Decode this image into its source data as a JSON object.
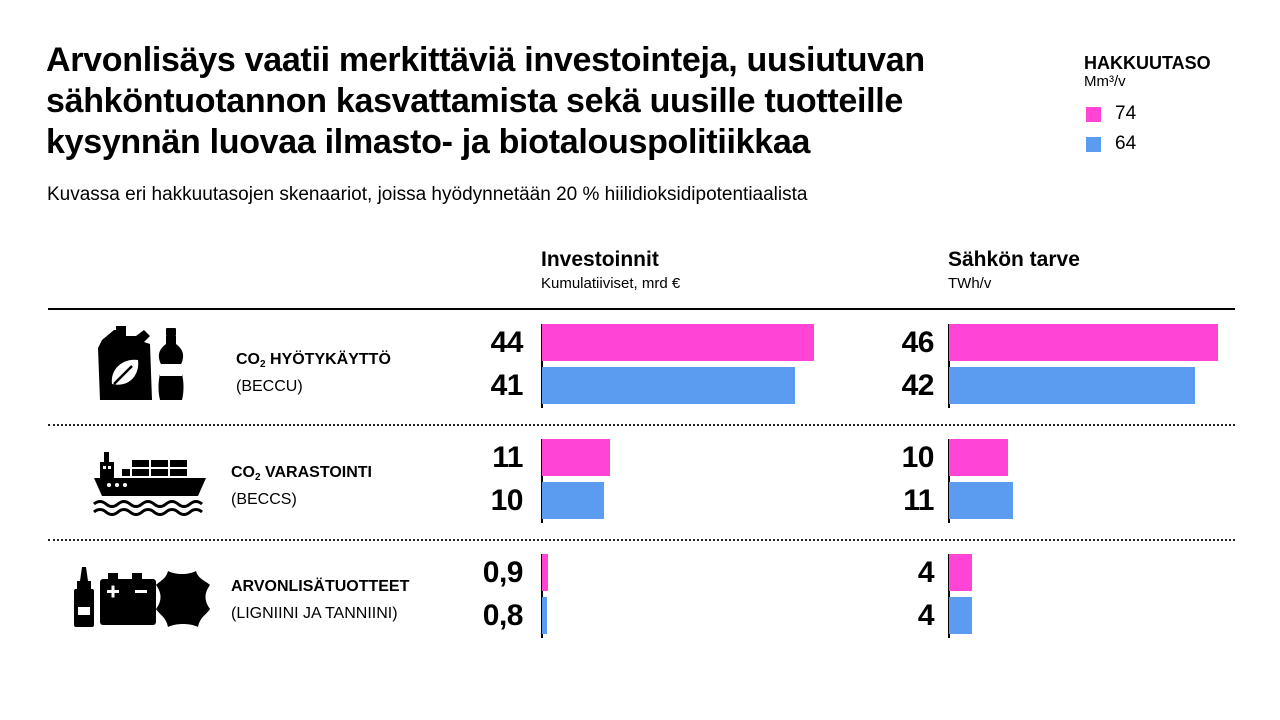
{
  "title_lines": [
    "Arvonlisäys vaatii merkittäviä investointeja, uusiutuvan",
    "sähköntuotannon kasvattamista sekä uusille tuotteille",
    "kysynnän luovaa ilmasto- ja biotalouspolitiikkaa"
  ],
  "subtitle": "Kuvassa eri hakkuutasojen skenaariot, joissa hyödynnetään 20 % hiilidioksidipotentiaalista",
  "legend": {
    "title": "HAKKUUTASO",
    "unit": "Mm³/v",
    "items": [
      {
        "label": "74",
        "color": "#ff44d6"
      },
      {
        "label": "64",
        "color": "#5b9cf0"
      }
    ]
  },
  "categories": [
    {
      "name_prefix": "CO",
      "name_sub": "2",
      "name_suffix": " HYÖTYKÄYTTÖ",
      "sub": "(BECCU)",
      "icon": "jerrycan-bottle-icon"
    },
    {
      "name_prefix": "CO",
      "name_sub": "2",
      "name_suffix": " VARASTOINTI",
      "sub": "(BECCS)",
      "icon": "cargo-ship-icon"
    },
    {
      "name_prefix": "ARVONLISÄTUOTTEET",
      "name_sub": "",
      "name_suffix": "",
      "sub": "(LIGNIINI JA TANNIINI)",
      "icon": "glue-battery-leather-icon"
    }
  ],
  "chart_data": [
    {
      "type": "bar",
      "orientation": "horizontal",
      "title": "Investoinnit",
      "unit": "Kumulatiiviset, mrd €",
      "categories": [
        "CO2 HYÖTYKÄYTTÖ (BECCU)",
        "CO2 VARASTOINTI (BECCS)",
        "ARVONLISÄTUOTTEET (LIGNIINI JA TANNIINI)"
      ],
      "series": [
        {
          "name": "74",
          "color": "#ff44d6",
          "values": [
            44,
            11,
            0.9
          ],
          "labels": [
            "44",
            "11",
            "0,9"
          ]
        },
        {
          "name": "64",
          "color": "#5b9cf0",
          "values": [
            41,
            10,
            0.8
          ],
          "labels": [
            "41",
            "10",
            "0,8"
          ]
        }
      ]
    },
    {
      "type": "bar",
      "orientation": "horizontal",
      "title": "Sähkön tarve",
      "unit": "TWh/v",
      "categories": [
        "CO2 HYÖTYKÄYTTÖ (BECCU)",
        "CO2 VARASTOINTI (BECCS)",
        "ARVONLISÄTUOTTEET (LIGNIINI JA TANNIINI)"
      ],
      "series": [
        {
          "name": "74",
          "color": "#ff44d6",
          "values": [
            46,
            10,
            4
          ],
          "labels": [
            "46",
            "10",
            "4"
          ]
        },
        {
          "name": "64",
          "color": "#5b9cf0",
          "values": [
            42,
            11,
            4
          ],
          "labels": [
            "42",
            "11",
            "4"
          ]
        }
      ]
    }
  ]
}
